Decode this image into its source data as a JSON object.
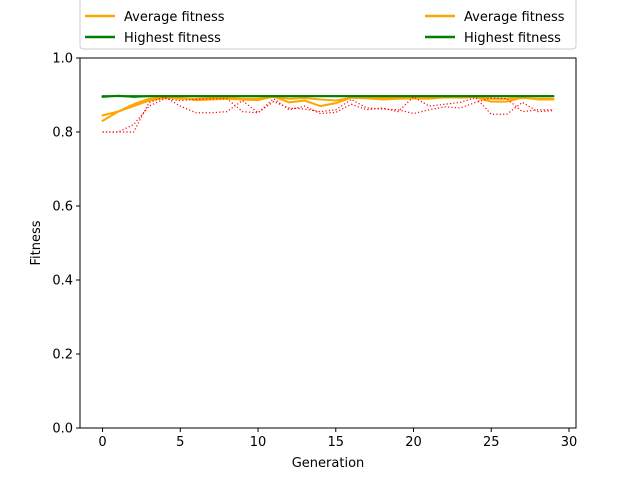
{
  "chart_data": {
    "type": "line",
    "title": "",
    "xlabel": "Generation",
    "ylabel": "Fitness",
    "xlim": [
      -1.45,
      30.45
    ],
    "ylim": [
      0.0,
      1.0
    ],
    "xticks": [
      0,
      5,
      10,
      15,
      20,
      25,
      30
    ],
    "yticks": [
      0.0,
      0.2,
      0.4,
      0.6,
      0.8,
      1.0
    ],
    "xtick_labels": [
      "0",
      "5",
      "10",
      "15",
      "20",
      "25",
      "30"
    ],
    "ytick_labels": [
      "0.0",
      "0.2",
      "0.4",
      "0.6",
      "0.8",
      "1.0"
    ],
    "grid": false,
    "legend_placement": "above plot, two columns",
    "legend": [
      {
        "label": "Average fitness",
        "color": "#ffa500"
      },
      {
        "label": "Average fitness",
        "color": "#ffa500"
      },
      {
        "label": "Highest fitness",
        "color": "#008000"
      },
      {
        "label": "Highest fitness",
        "color": "#008000"
      }
    ],
    "x": [
      0,
      1,
      2,
      3,
      4,
      5,
      6,
      7,
      8,
      9,
      10,
      11,
      12,
      13,
      14,
      15,
      16,
      17,
      18,
      19,
      20,
      21,
      22,
      23,
      24,
      25,
      26,
      27,
      28,
      29
    ],
    "series": [
      {
        "name": "Average fitness",
        "color": "#ffa500",
        "style": "solid",
        "values": [
          0.83,
          0.855,
          0.87,
          0.885,
          0.892,
          0.893,
          0.886,
          0.888,
          0.89,
          0.888,
          0.886,
          0.896,
          0.88,
          0.885,
          0.87,
          0.878,
          0.893,
          0.891,
          0.888,
          0.89,
          0.891,
          0.89,
          0.894,
          0.893,
          0.894,
          0.882,
          0.882,
          0.893,
          0.888,
          0.888
        ]
      },
      {
        "name": "Average fitness",
        "color": "#ffa500",
        "style": "solid",
        "values": [
          0.845,
          0.855,
          0.875,
          0.89,
          0.895,
          0.89,
          0.89,
          0.892,
          0.893,
          0.89,
          0.89,
          0.895,
          0.89,
          0.892,
          0.888,
          0.885,
          0.893,
          0.894,
          0.893,
          0.893,
          0.893,
          0.894,
          0.893,
          0.894,
          0.895,
          0.89,
          0.89,
          0.892,
          0.89,
          0.89
        ]
      },
      {
        "name": "Highest fitness",
        "color": "#008000",
        "style": "solid",
        "values": [
          0.895,
          0.898,
          0.895,
          0.897,
          0.897,
          0.897,
          0.897,
          0.897,
          0.897,
          0.897,
          0.897,
          0.897,
          0.897,
          0.897,
          0.897,
          0.897,
          0.897,
          0.897,
          0.897,
          0.897,
          0.897,
          0.897,
          0.897,
          0.897,
          0.897,
          0.897,
          0.897,
          0.897,
          0.897,
          0.897
        ]
      },
      {
        "name": "Highest fitness",
        "color": "#008000",
        "style": "solid",
        "values": [
          0.897,
          0.897,
          0.897,
          0.897,
          0.897,
          0.897,
          0.897,
          0.897,
          0.897,
          0.897,
          0.897,
          0.897,
          0.897,
          0.897,
          0.897,
          0.897,
          0.897,
          0.897,
          0.897,
          0.897,
          0.897,
          0.897,
          0.897,
          0.897,
          0.897,
          0.897,
          0.897,
          0.897,
          0.897,
          0.897
        ]
      },
      {
        "color": "#ff0000",
        "style": "dotted",
        "values": [
          0.8,
          0.8,
          0.8,
          0.88,
          0.895,
          0.87,
          0.852,
          0.852,
          0.855,
          0.885,
          0.852,
          0.89,
          0.86,
          0.87,
          0.85,
          0.853,
          0.875,
          0.86,
          0.865,
          0.855,
          0.895,
          0.87,
          0.875,
          0.88,
          0.893,
          0.848,
          0.848,
          0.88,
          0.855,
          0.858
        ]
      },
      {
        "color": "#ff0000",
        "style": "dotted",
        "values": [
          0.8,
          0.8,
          0.82,
          0.87,
          0.89,
          0.885,
          0.888,
          0.89,
          0.89,
          0.855,
          0.852,
          0.882,
          0.865,
          0.862,
          0.855,
          0.86,
          0.888,
          0.865,
          0.862,
          0.86,
          0.85,
          0.86,
          0.868,
          0.865,
          0.88,
          0.892,
          0.89,
          0.855,
          0.86,
          0.86
        ]
      }
    ]
  }
}
